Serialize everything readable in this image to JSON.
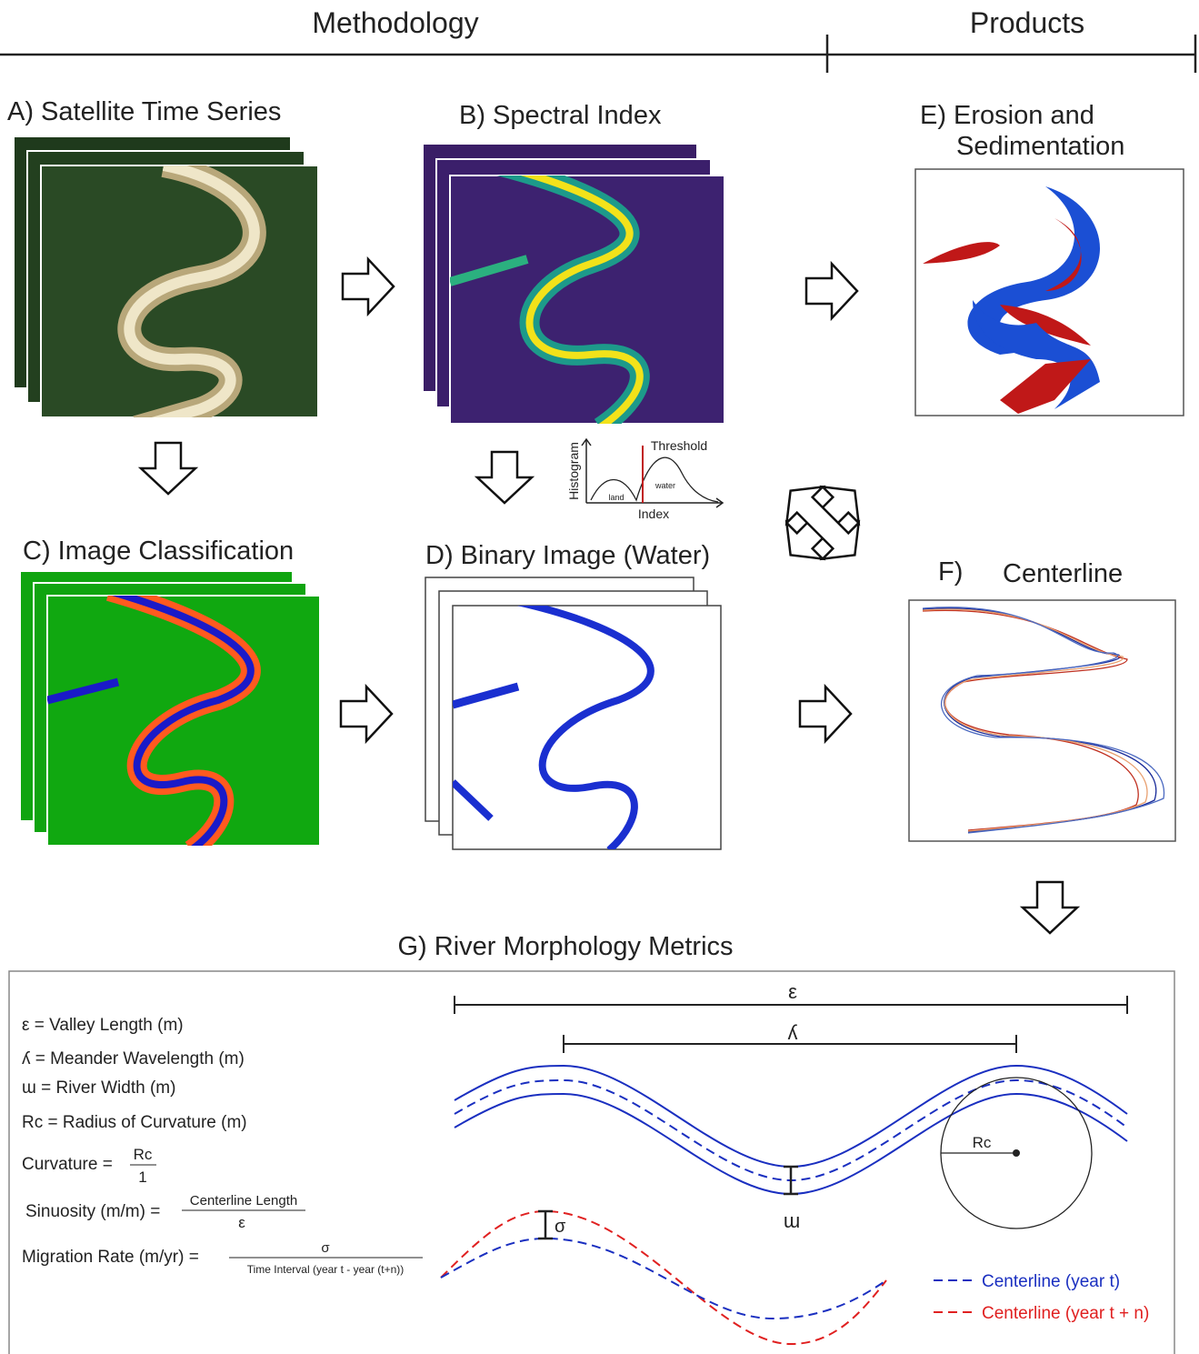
{
  "header": {
    "left": "Methodology",
    "right": "Products"
  },
  "panels": {
    "a": "A) Satellite Time Series",
    "b": "B) Spectral Index",
    "c": "C) Image Classification",
    "d": "D) Binary Image (Water)",
    "e": [
      "E) Erosion and",
      "Sedimentation"
    ],
    "f": {
      "letter": "F)",
      "title": "Centerline"
    },
    "g": "G) River Morphology Metrics"
  },
  "histogram": {
    "y_label": "Histogram",
    "x_label": "Index",
    "threshold": "Threshold",
    "land": "land",
    "water": "water"
  },
  "definitions": [
    "ε = Valley Length (m)",
    "ʎ = Meander Wavelength (m)",
    "ɯ = River Width (m)",
    "Rc = Radius of Curvature (m)"
  ],
  "formulas": {
    "curvature": {
      "label": "Curvature =",
      "numerator": "Rc",
      "denominator": "1"
    },
    "sinuosity": {
      "label": "Sinuosity (m/m) =",
      "numerator": "Centerline Length",
      "denominator": "ε"
    },
    "migration": {
      "label": "Migration Rate (m/yr) =",
      "numerator": "σ",
      "denominator": "Time Interval (year t - year (t+n))"
    }
  },
  "diagram": {
    "valley": "ε",
    "wavelength": "ʎ",
    "width": "ɯ",
    "radius": "Rc",
    "migration": "σ"
  },
  "legend": [
    "Centerline (year t)",
    "Centerline (year t + n)"
  ]
}
